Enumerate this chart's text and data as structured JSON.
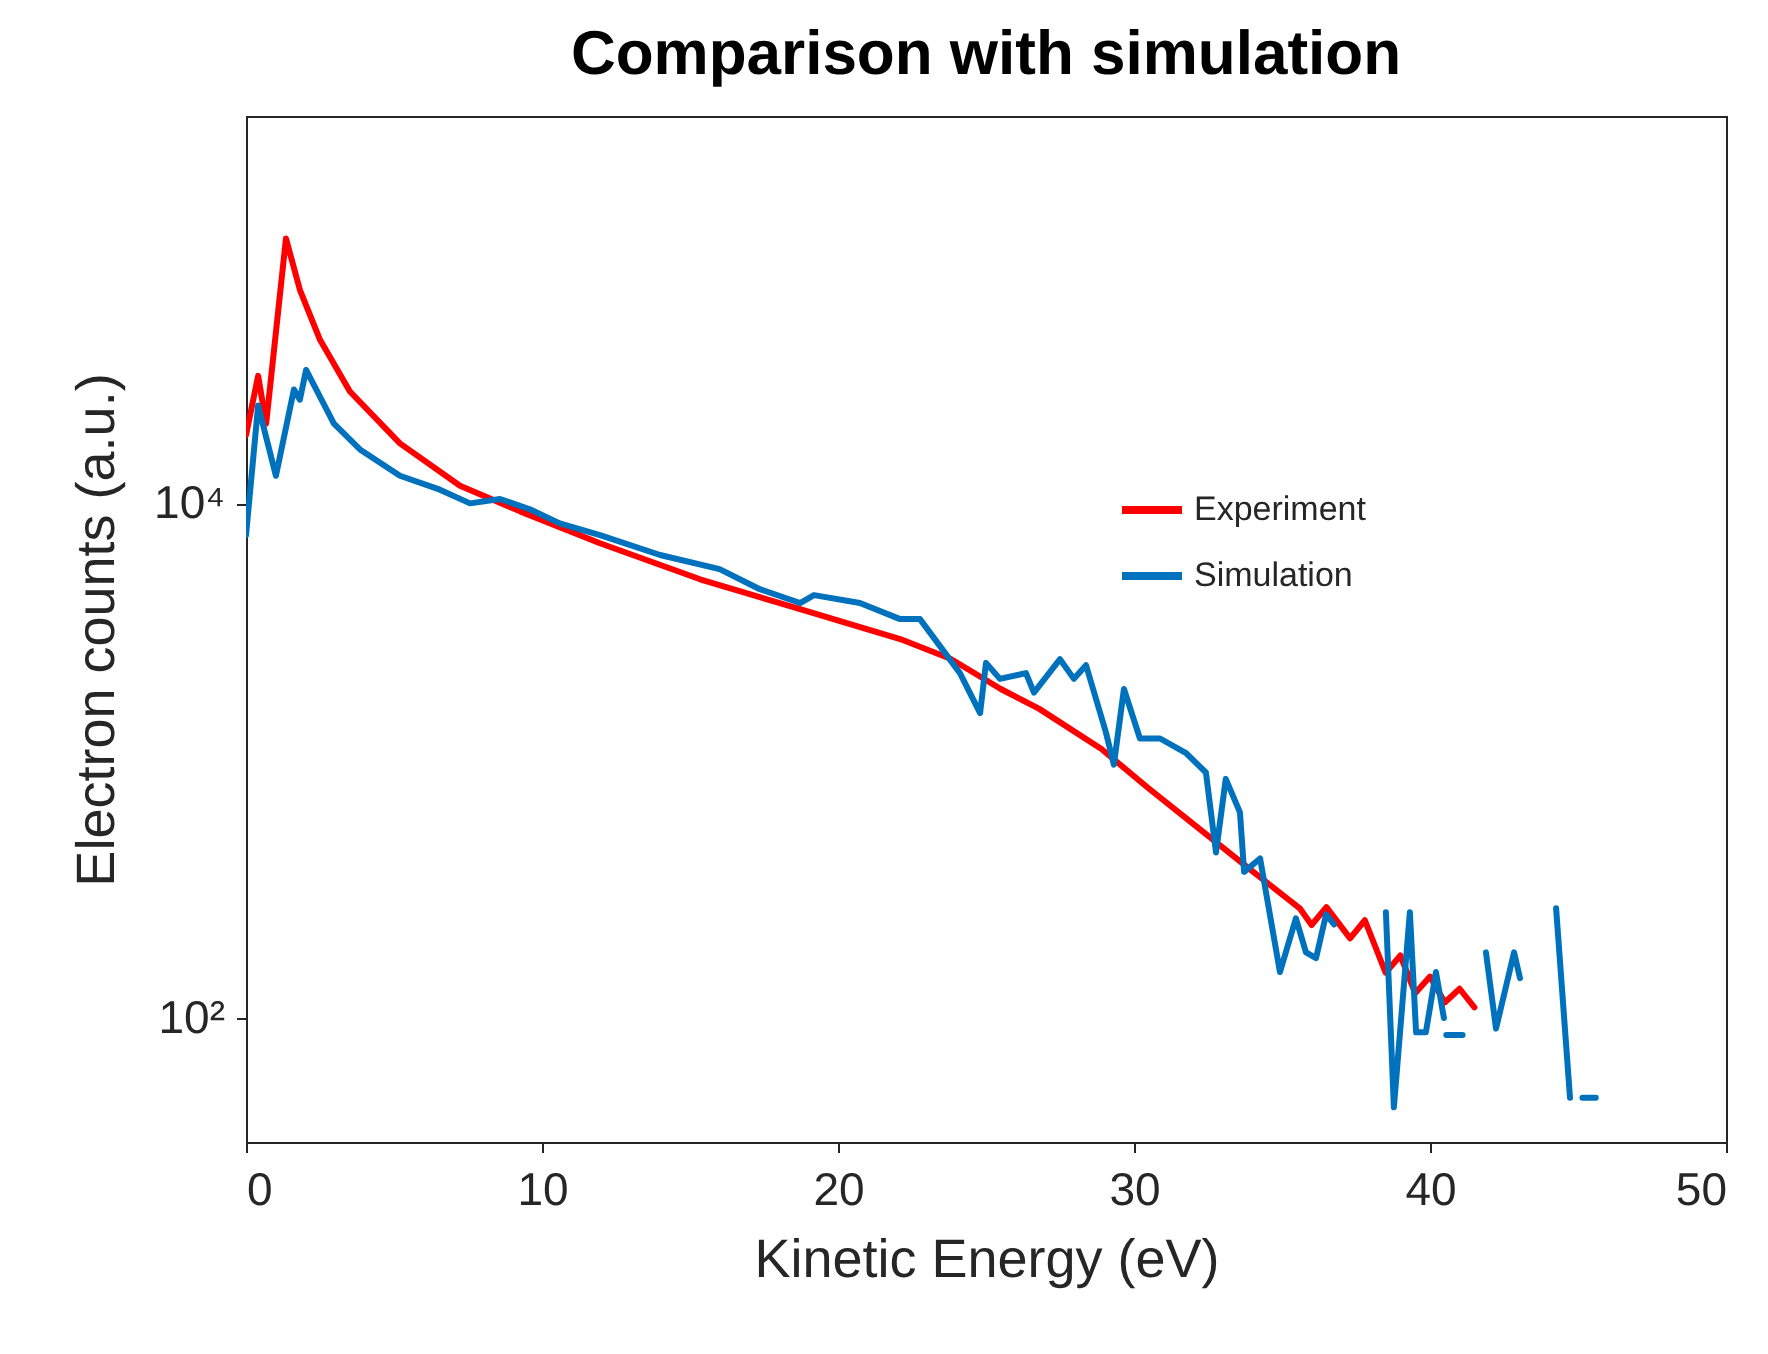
{
  "chart_data": {
    "type": "line",
    "title": "Comparison with simulation",
    "xlabel": "Kinetic Energy (eV)",
    "ylabel": "Electron counts (a.u.)",
    "log": "y",
    "xlim": [
      0,
      50
    ],
    "xticks": [
      0,
      10,
      20,
      30,
      40,
      50
    ],
    "ylim": [
      33,
      320000
    ],
    "yticks": [
      {
        "value": 100,
        "label": "10²"
      },
      {
        "value": 10000,
        "label": "10⁴"
      }
    ],
    "grid": false,
    "legend": "top right",
    "line_style": "solid",
    "marker": "none",
    "series": [
      {
        "name": "Experiment",
        "color": "#ff0000",
        "x": [
          0,
          0.41,
          0.68,
          1.35,
          1.82,
          2.5,
          3.51,
          5.2,
          7.23,
          9.26,
          11.96,
          15.34,
          18.72,
          22.1,
          23.8,
          25.5,
          26.8,
          28.9,
          30.5,
          32.2,
          33.9,
          35.6,
          36.0,
          36.5,
          37.3,
          37.8,
          38.5,
          39.0,
          39.5,
          40.0,
          40.5,
          41.0,
          41.5
        ],
        "values": [
          18400,
          31300,
          20400,
          107000,
          67600,
          43200,
          27200,
          17100,
          11700,
          9310,
          7000,
          5070,
          3880,
          2970,
          2490,
          1900,
          1590,
          1110,
          780,
          545,
          380,
          267,
          230,
          270,
          204,
          240,
          150,
          175,
          125,
          145,
          115,
          130,
          110
        ]
      },
      {
        "name": "Simulation",
        "color": "#0072bd",
        "x": [
          0,
          0.41,
          1.01,
          1.62,
          1.82,
          2.03,
          2.97,
          3.85,
          5.2,
          6.55,
          7.57,
          8.58,
          9.59,
          10.6,
          11.96,
          13.99,
          16.0,
          17.36,
          18.72,
          19.19,
          20.74,
          22.1,
          22.77,
          24.12,
          24.8,
          25.0,
          25.47,
          26.35,
          26.62,
          27.5,
          27.97,
          28.38,
          29.05,
          29.32,
          29.66,
          30.2,
          30.88,
          31.76,
          32.43,
          32.77,
          33.1,
          33.58,
          33.72,
          34.26,
          34.93,
          35.47,
          35.81,
          36.15,
          36.49,
          36.76,
          37.5,
          38.51,
          38.78,
          39.32,
          39.53,
          39.86,
          40.2,
          40.47,
          40.5,
          40.55,
          41.1,
          41.4,
          41.89,
          42.23,
          42.84,
          43.04,
          43.8,
          44.26,
          44.73,
          44.95,
          45.15,
          45.6
        ],
        "values": [
          7520,
          24000,
          12800,
          27700,
          25300,
          33000,
          20400,
          16200,
          12800,
          11300,
          10000,
          10400,
          9490,
          8360,
          7520,
          6300,
          5550,
          4640,
          4100,
          4400,
          4100,
          3550,
          3550,
          2190,
          1530,
          2400,
          2080,
          2190,
          1840,
          2480,
          2080,
          2350,
          1290,
          965,
          1900,
          1220,
          1220,
          1070,
          900,
          440,
          850,
          630,
          370,
          417,
          151,
          244,
          180,
          171,
          253,
          231,
          null,
          258,
          45,
          258,
          88,
          88,
          151,
          100,
          null,
          86,
          86,
          null,
          180,
          91,
          180,
          143,
          null,
          267,
          49,
          null,
          49,
          49
        ]
      }
    ]
  }
}
